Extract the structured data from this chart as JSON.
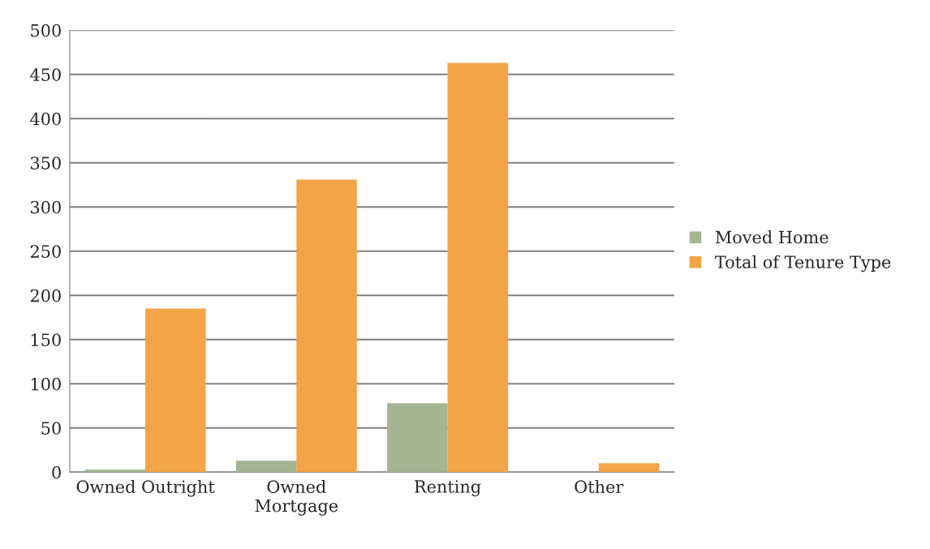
{
  "chart_data": {
    "type": "bar",
    "categories": [
      "Owned Outright",
      "Owned\nMortgage",
      "Renting",
      "Other"
    ],
    "series": [
      {
        "name": "Moved Home",
        "color": "#a5b592",
        "values": [
          3,
          13,
          78,
          null
        ]
      },
      {
        "name": "Total of Tenure Type",
        "color": "#f2a446",
        "values": [
          185,
          331,
          463,
          10
        ]
      }
    ],
    "ylim": [
      0,
      500
    ],
    "yticks": [
      0,
      50,
      100,
      150,
      200,
      250,
      300,
      350,
      400,
      450,
      500
    ],
    "grid": "y",
    "legend": "right"
  }
}
